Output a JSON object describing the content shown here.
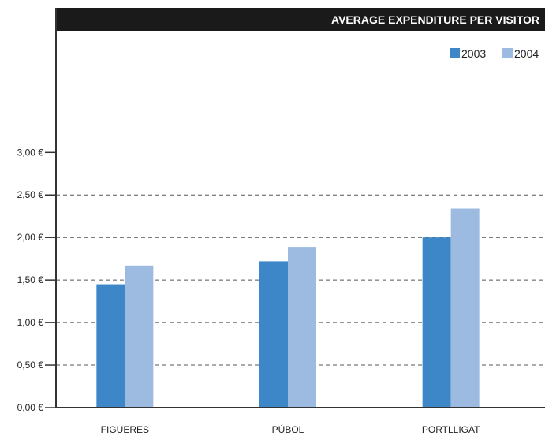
{
  "chart_data": {
    "type": "bar",
    "title": "AVERAGE EXPENDITURE PER VISITOR",
    "categories": [
      "FIGUERES",
      "PÚBOL",
      "PORTLLIGAT"
    ],
    "series": [
      {
        "name": "2003",
        "values": [
          1.45,
          1.72,
          2.0
        ],
        "color": "#3d87c8"
      },
      {
        "name": "2004",
        "values": [
          1.67,
          1.89,
          2.34
        ],
        "color": "#9dbbe1"
      }
    ],
    "yticks": [
      {
        "value": 0,
        "label": "0,00 €"
      },
      {
        "value": 0.5,
        "label": "0,50 €"
      },
      {
        "value": 1.0,
        "label": "1,00 €"
      },
      {
        "value": 1.5,
        "label": "1,50 €"
      },
      {
        "value": 2.0,
        "label": "2,00 €"
      },
      {
        "value": 2.5,
        "label": "2,50 €"
      },
      {
        "value": 3.0,
        "label": "3,00 €"
      }
    ],
    "ylim": [
      0,
      4.43
    ],
    "grid": "dashed",
    "legend_position": "top-right",
    "colors": {
      "title_bar": "#1a1a1a",
      "axis": "#333333",
      "grid": "#555555"
    }
  }
}
